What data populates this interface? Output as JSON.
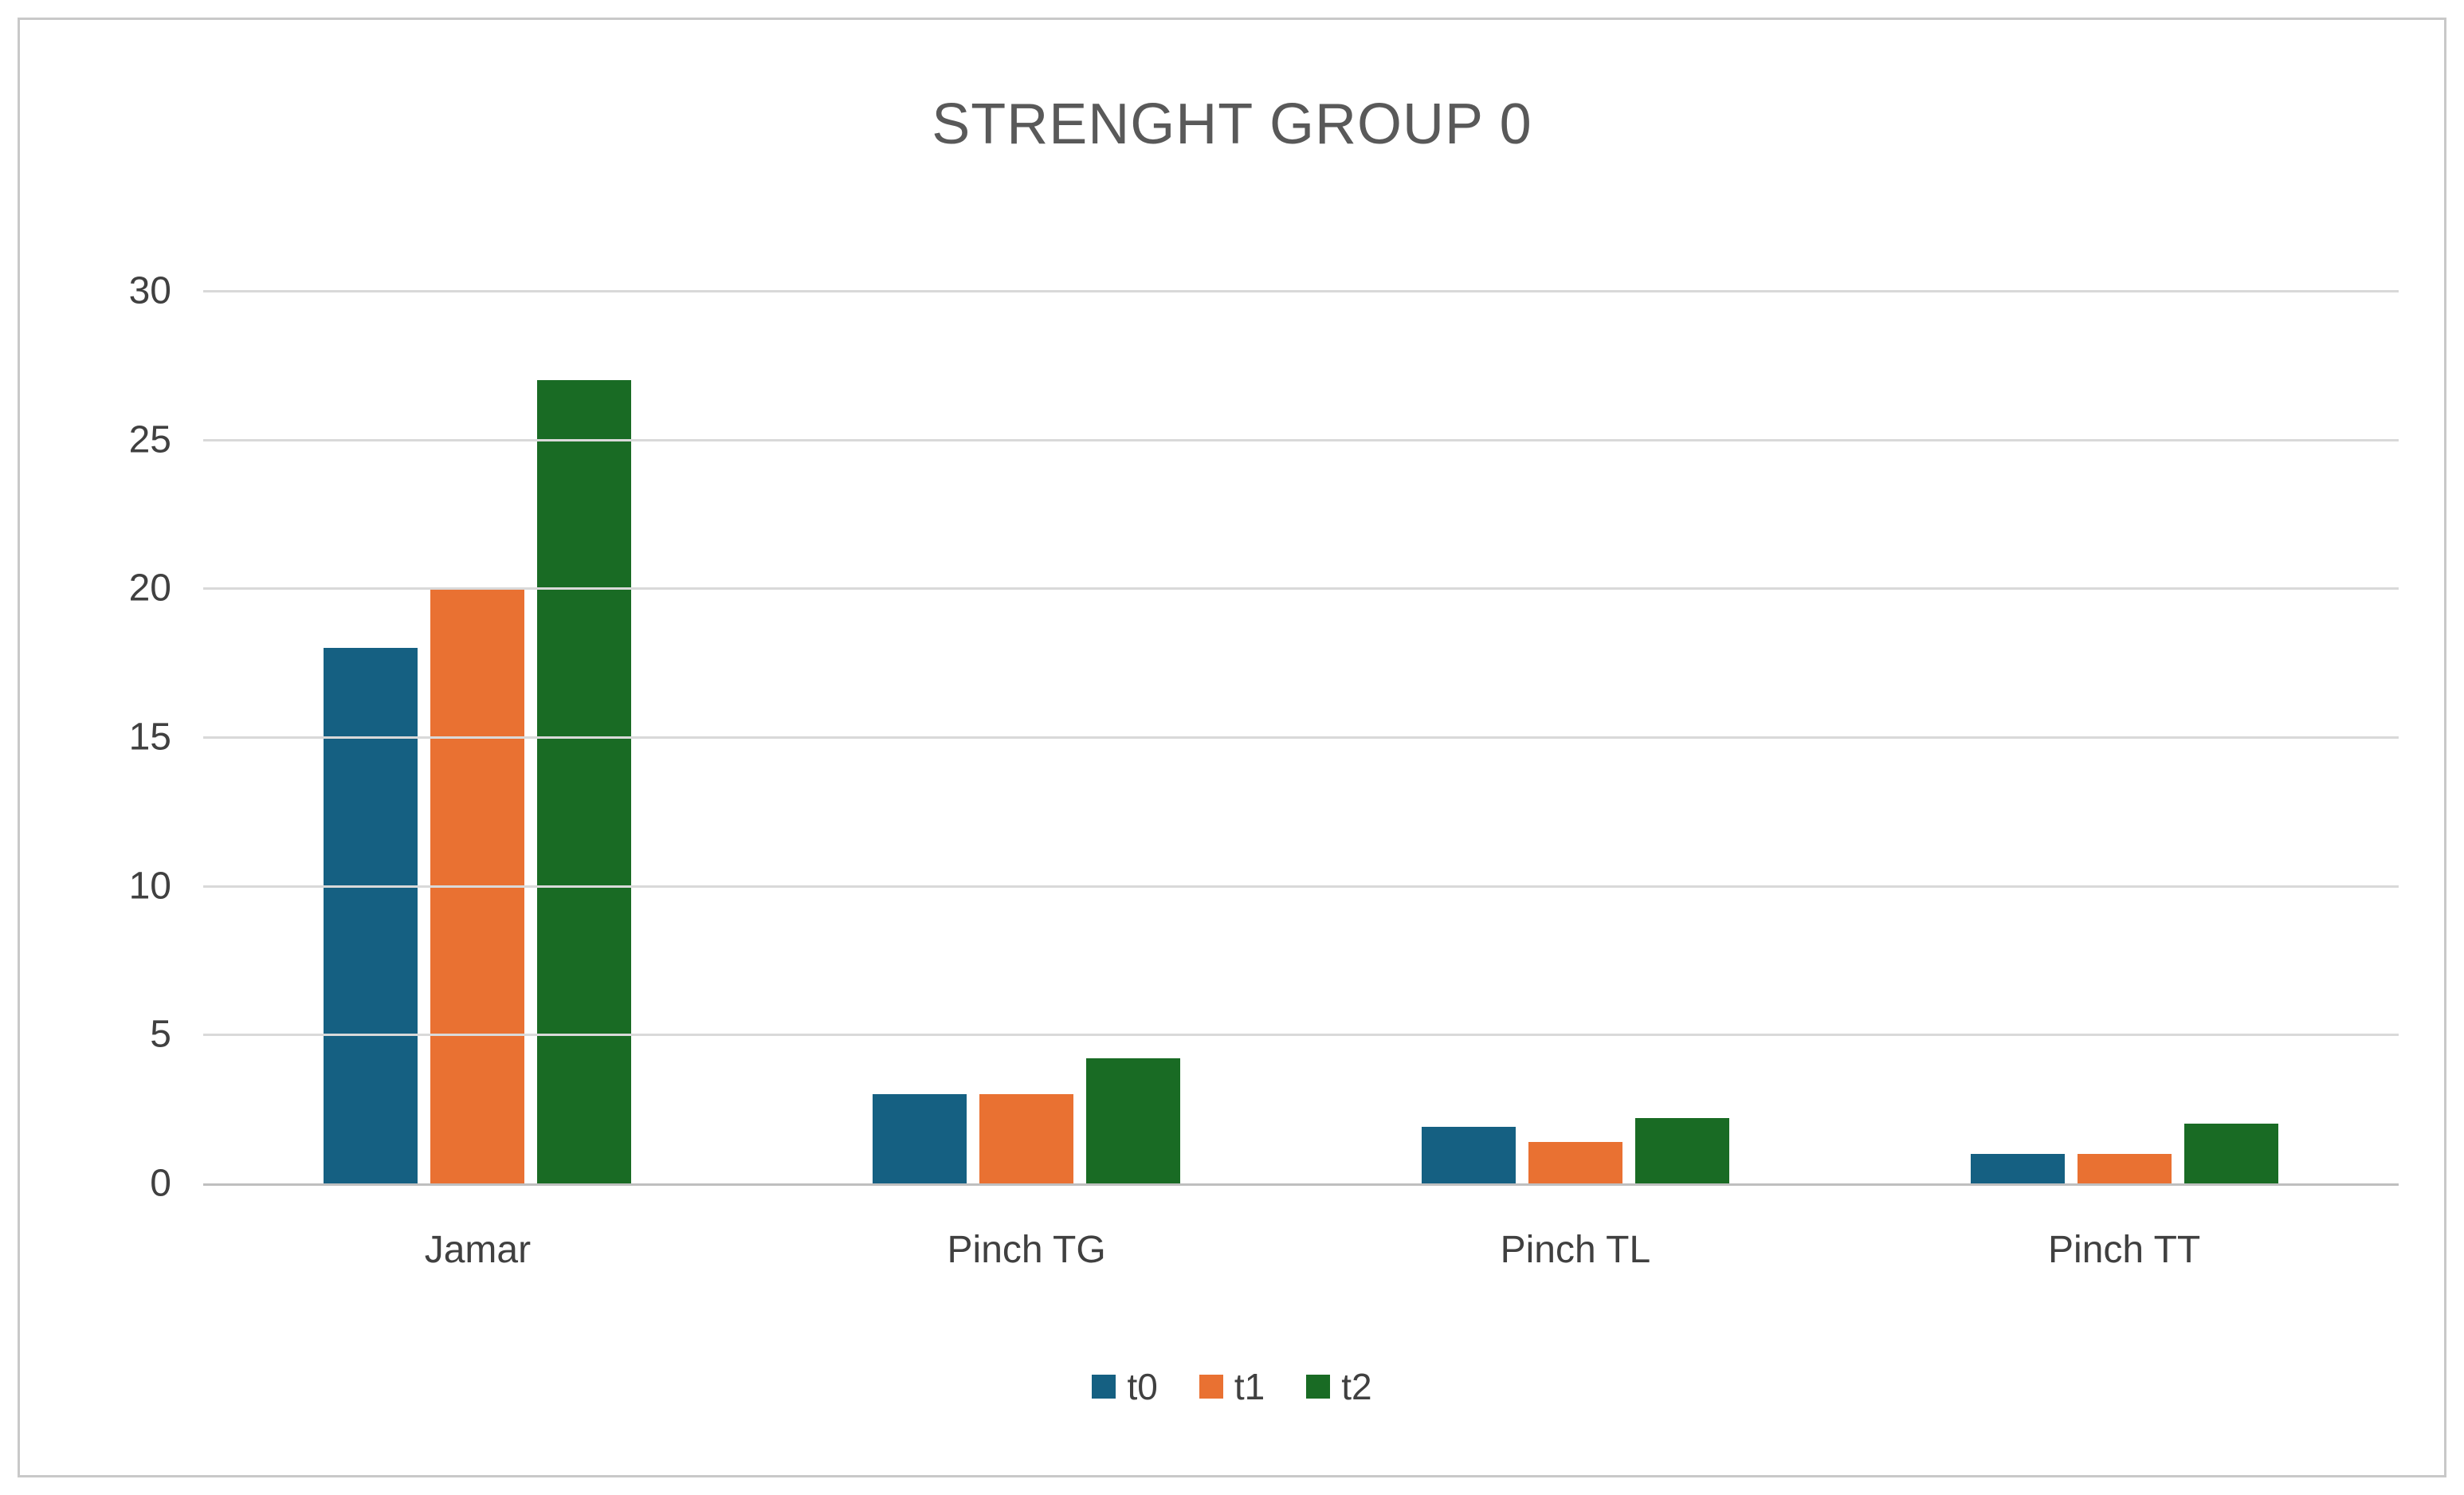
{
  "chart_data": {
    "type": "bar",
    "title": "STRENGHT GROUP 0",
    "categories": [
      "Jamar",
      "Pinch TG",
      "Pinch TL",
      "Pinch TT"
    ],
    "series": [
      {
        "name": "t0",
        "color": "#156082",
        "values": [
          18,
          3,
          1.9,
          1
        ]
      },
      {
        "name": "t1",
        "color": "#E97132",
        "values": [
          20,
          3,
          1.4,
          1
        ]
      },
      {
        "name": "t2",
        "color": "#196B24",
        "values": [
          27,
          4.2,
          2.2,
          2
        ]
      }
    ],
    "xlabel": "",
    "ylabel": "",
    "ylim": [
      0,
      30
    ],
    "ytick_step": 5,
    "grid": true,
    "legend_position": "bottom"
  },
  "styles": {
    "title_color": "#595959",
    "axis_text_color": "#404040",
    "gridline_color": "#D9D9D9",
    "axis_line_color": "#BFBFBF",
    "frame_border_color": "#C9C9C9",
    "background": "#FFFFFF"
  }
}
